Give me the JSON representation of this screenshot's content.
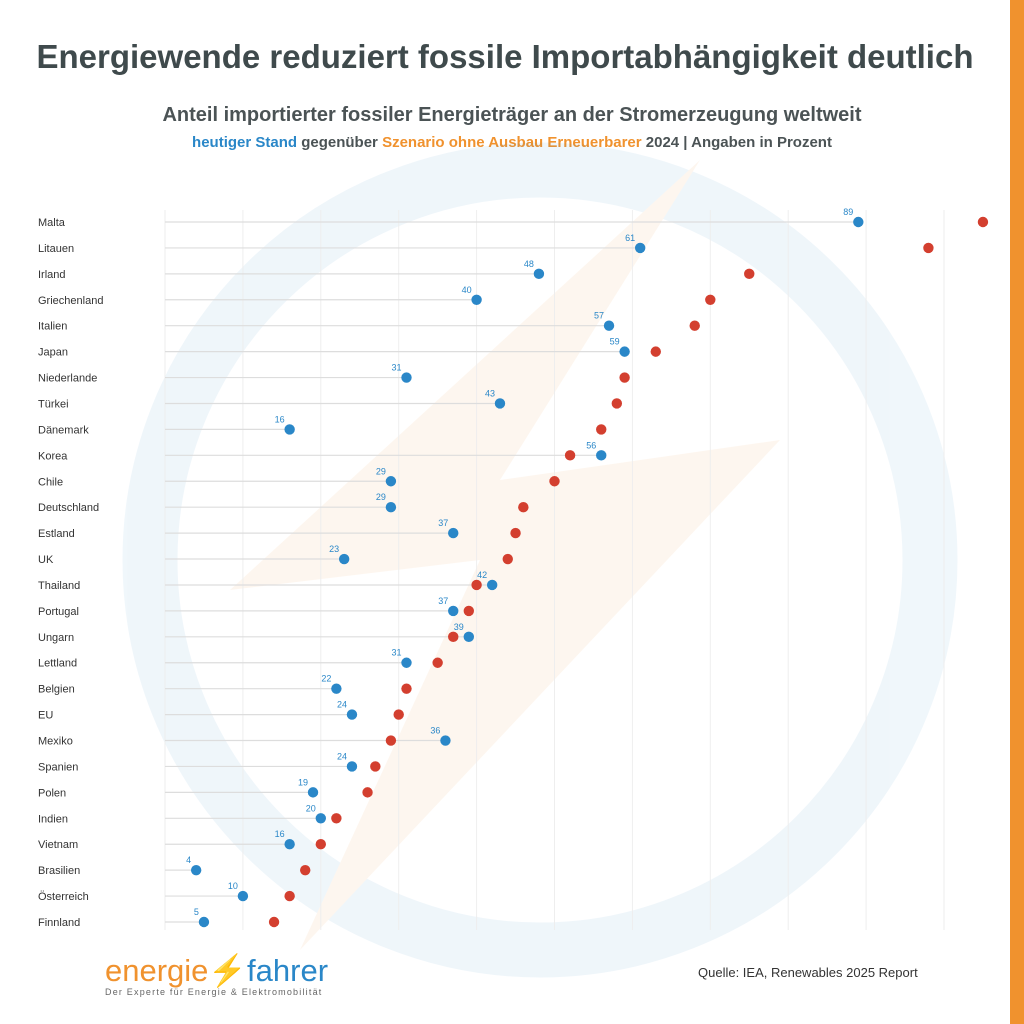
{
  "title": "Energiewende reduziert fossile Importabhängigkeit deutlich",
  "subtitle": "Anteil importierter fossiler Energieträger an der Stromerzeugung weltweit",
  "legend": {
    "current": "heutiger Stand",
    "connector": "gegenüber",
    "scenario": "Szenario ohne Ausbau Erneuerbarer",
    "suffix": "2024 | Angaben in Prozent"
  },
  "source": "Quelle: IEA, Renewables 2025 Report",
  "logo": {
    "part1": "energie",
    "part2": "fahrer",
    "tagline": "Der Experte für Energie & Elektromobilität"
  },
  "colors": {
    "current": "#2a87c8",
    "scenario": "#d33f2f",
    "accent": "#f0922e",
    "title": "#3f4a4c"
  },
  "chart_data": {
    "type": "scatter",
    "orientation": "horizontal dot plot",
    "unit": "%",
    "xlim": [
      0,
      106
    ],
    "grid": "vertical lines, faint",
    "categories": [
      "Malta",
      "Litauen",
      "Irland",
      "Griechenland",
      "Italien",
      "Japan",
      "Niederlande",
      "Türkei",
      "Dänemark",
      "Korea",
      "Chile",
      "Deutschland",
      "Estland",
      "UK",
      "Thailand",
      "Portugal",
      "Ungarn",
      "Lettland",
      "Belgien",
      "EU",
      "Mexiko",
      "Spanien",
      "Polen",
      "Indien",
      "Vietnam",
      "Brasilien",
      "Österreich",
      "Finnland"
    ],
    "series": [
      {
        "name": "heutiger Stand",
        "color": "#2a87c8",
        "values": [
          89,
          61,
          48,
          40,
          57,
          59,
          31,
          43,
          16,
          56,
          29,
          29,
          37,
          23,
          42,
          37,
          39,
          31,
          22,
          24,
          36,
          24,
          19,
          20,
          16,
          4,
          10,
          5
        ]
      },
      {
        "name": "Szenario ohne Ausbau Erneuerbarer",
        "color": "#d33f2f",
        "values": [
          105,
          98,
          75,
          70,
          68,
          63,
          59,
          58,
          56,
          52,
          50,
          46,
          45,
          44,
          40,
          39,
          37,
          35,
          31,
          30,
          29,
          27,
          26,
          22,
          20,
          18,
          16,
          14
        ]
      }
    ]
  }
}
